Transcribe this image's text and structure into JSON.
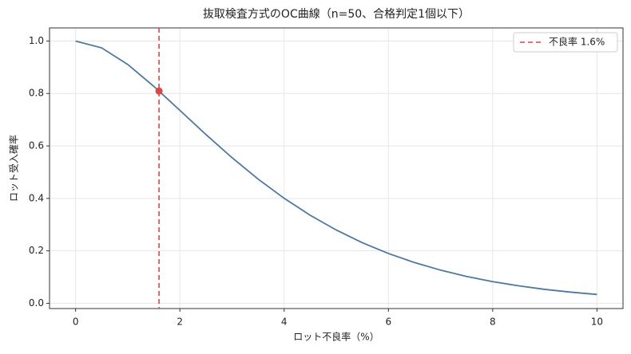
{
  "chart_data": {
    "type": "line",
    "title": "抜取検査方式のOC曲線（n=50、合格判定1個以下）",
    "x_label": "ロット不良率（%）",
    "y_label": "ロット受入確率",
    "x": [
      0,
      0.5,
      1,
      1.5,
      2,
      2.5,
      3,
      3.5,
      4,
      4.5,
      5,
      5.5,
      6,
      6.5,
      7,
      7.5,
      8,
      8.5,
      9,
      9.5,
      10
    ],
    "series": [
      {
        "color": "#4a78a8",
        "values": [
          1.0,
          0.9739,
          0.9106,
          0.8273,
          0.7358,
          0.6435,
          0.5553,
          0.4738,
          0.4005,
          0.3357,
          0.2795,
          0.2311,
          0.19,
          0.1554,
          0.1265,
          0.1025,
          0.0827,
          0.0665,
          0.0532,
          0.0425,
          0.0338
        ]
      }
    ],
    "reference": {
      "label": "不良率 1.6%",
      "x": 1.6,
      "y": 0.8094,
      "color": "#e04444"
    },
    "xlim": [
      -0.5,
      10.5
    ],
    "ylim": [
      -0.02,
      1.05
    ],
    "xticks": [
      0,
      2,
      4,
      6,
      8,
      10
    ],
    "yticks": [
      {
        "value": 0,
        "label": "0.0"
      },
      {
        "value": 0.2,
        "label": "0.2"
      },
      {
        "value": 0.4,
        "label": "0.4"
      },
      {
        "value": 0.6,
        "label": "0.6"
      },
      {
        "value": 0.8,
        "label": "0.8"
      },
      {
        "value": 1,
        "label": "1.0"
      }
    ],
    "grid": true,
    "legend": "upper right"
  }
}
